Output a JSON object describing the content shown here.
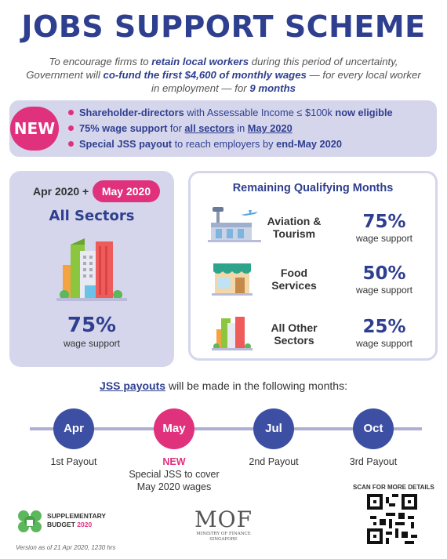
{
  "title": "JOBS SUPPORT SCHEME",
  "intro": {
    "part1": "To encourage firms to ",
    "em1": "retain local workers",
    "part2": " during this period of uncertainty, Government will ",
    "em2": "co-fund the first $4,600 of monthly wages",
    "part3": " — for every local worker in employment — for ",
    "em3": "9 months"
  },
  "new_section": {
    "badge": "NEW",
    "items": [
      {
        "b1": "Shareholder-directors",
        "t1": " with Assessable Income ≤ $100k ",
        "b2": "now eligible"
      },
      {
        "b1": "75% wage support",
        "t1": " for ",
        "u1": "all sectors",
        "t2": " in ",
        "u2": "May 2020"
      },
      {
        "b1": "Special JSS payout",
        "t1": " to reach employers by ",
        "b2": "end-May 2020"
      }
    ]
  },
  "left_card": {
    "period": "Apr 2020 +",
    "period_highlight": "May 2020",
    "sector": "All Sectors",
    "percent": "75%",
    "label": "wage support"
  },
  "right_card": {
    "title": "Remaining Qualifying Months",
    "rows": [
      {
        "sector_line1": "Aviation &",
        "sector_line2": "Tourism",
        "percent": "75%",
        "label": "wage support",
        "icon": "airport-icon"
      },
      {
        "sector_line1": "Food",
        "sector_line2": "Services",
        "percent": "50%",
        "label": "wage support",
        "icon": "shopfront-icon"
      },
      {
        "sector_line1": "All Other",
        "sector_line2": "Sectors",
        "percent": "25%",
        "label": "wage support",
        "icon": "buildings-icon"
      }
    ]
  },
  "payouts": {
    "heading_bold": "JSS payouts",
    "heading_rest": " will be made in the following months:",
    "months": [
      {
        "month": "Apr",
        "label": "1st Payout",
        "color": "#3d4fa3"
      },
      {
        "month": "May",
        "new": "NEW",
        "label_line1": "Special JSS to cover",
        "label_line2": "May 2020 wages",
        "color": "#e0317d"
      },
      {
        "month": "Jul",
        "label": "2nd Payout",
        "color": "#3d4fa3"
      },
      {
        "month": "Oct",
        "label": "3rd Payout",
        "color": "#3d4fa3"
      }
    ]
  },
  "footer": {
    "budget_line1": "SUPPLEMENTARY",
    "budget_line2": "BUDGET",
    "budget_year": "2020",
    "mof": "MOF",
    "mof_sub1": "MINISTRY OF FINANCE",
    "mof_sub2": "SINGAPORE",
    "scan": "SCAN FOR MORE DETAILS",
    "version": "Version as of 21 Apr 2020, 1230 hrs"
  },
  "colors": {
    "navy": "#2f3f8f",
    "pink": "#e0317d",
    "lavender": "#d5d6ec",
    "green": "#5cb85c"
  }
}
